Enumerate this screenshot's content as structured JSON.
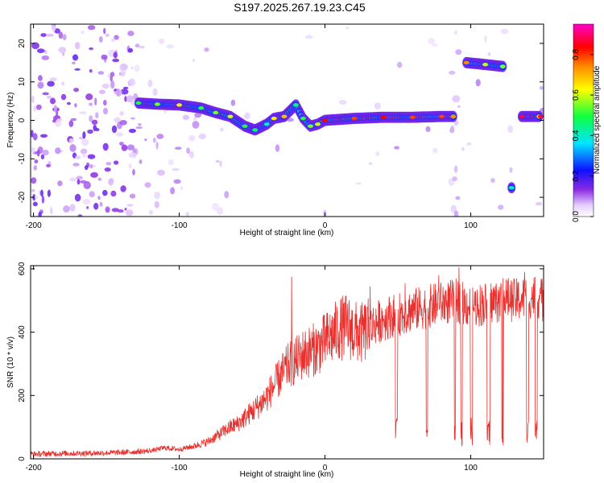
{
  "figure": {
    "title": "S197.2025.267.19.23.C45"
  },
  "chart_data": [
    {
      "type": "heatmap",
      "title": "S197.2025.267.19.23.C45",
      "xlabel": "Height of straight line (km)",
      "ylabel": "Frequency (Hz)",
      "xlim": [
        -202,
        150
      ],
      "ylim": [
        -25,
        25
      ],
      "xticks": [
        -200,
        -100,
        0,
        100
      ],
      "xtick_labels": [
        "-200",
        "-100",
        "0",
        "100"
      ],
      "yticks": [
        -20,
        -10,
        0,
        10,
        20
      ],
      "ytick_labels": [
        "-20",
        "-10",
        "0",
        "10",
        "20"
      ],
      "colorbar": {
        "label": "Normalized spectral amplitude",
        "range": [
          0,
          0.95
        ],
        "ticks": [
          0,
          0.2,
          0.4,
          0.6,
          0.8
        ],
        "tick_labels": [
          "0.0",
          "0.2",
          "0.4",
          "0.6",
          "0.8"
        ],
        "colormap": "rainbow (white → purple → blue → cyan → green → yellow → orange → red → magenta)"
      },
      "ridge": {
        "description": "dominant frequency trace",
        "points": [
          {
            "x": -128,
            "y": 4.5,
            "amp": 0.45
          },
          {
            "x": -115,
            "y": 4.2,
            "amp": 0.5
          },
          {
            "x": -100,
            "y": 4.0,
            "amp": 0.6
          },
          {
            "x": -85,
            "y": 3.2,
            "amp": 0.45
          },
          {
            "x": -75,
            "y": 2.0,
            "amp": 0.5
          },
          {
            "x": -65,
            "y": 1.0,
            "amp": 0.55
          },
          {
            "x": -55,
            "y": -1.5,
            "amp": 0.45
          },
          {
            "x": -48,
            "y": -2.5,
            "amp": 0.4
          },
          {
            "x": -40,
            "y": -1.0,
            "amp": 0.35
          },
          {
            "x": -35,
            "y": 0.5,
            "amp": 0.6
          },
          {
            "x": -28,
            "y": 1.0,
            "amp": 0.65
          },
          {
            "x": -20,
            "y": 4.0,
            "amp": 0.4
          },
          {
            "x": -15,
            "y": 0.5,
            "amp": 0.45
          },
          {
            "x": -10,
            "y": -1.5,
            "amp": 0.5
          },
          {
            "x": -5,
            "y": -1.0,
            "amp": 0.55
          },
          {
            "x": 0,
            "y": 0.0,
            "amp": 0.8
          },
          {
            "x": 20,
            "y": 0.5,
            "amp": 0.75
          },
          {
            "x": 40,
            "y": 0.8,
            "amp": 0.8
          },
          {
            "x": 60,
            "y": 0.8,
            "amp": 0.75
          },
          {
            "x": 80,
            "y": 1.0,
            "amp": 0.75
          },
          {
            "x": 88,
            "y": 1.0,
            "amp": 0.7
          },
          {
            "x": 97,
            "y": 15.0,
            "amp": 0.7
          },
          {
            "x": 110,
            "y": 14.5,
            "amp": 0.55
          },
          {
            "x": 122,
            "y": 14.0,
            "amp": 0.5
          },
          {
            "x": 128,
            "y": -17.5,
            "amp": 0.35
          },
          {
            "x": 135,
            "y": 1.0,
            "amp": 0.85
          },
          {
            "x": 148,
            "y": 1.0,
            "amp": 0.85
          }
        ]
      }
    },
    {
      "type": "line",
      "xlabel": "Height of straight line (km)",
      "ylabel": "SNR (10 * v/v)",
      "xlim": [
        -202,
        150
      ],
      "ylim": [
        0,
        610
      ],
      "xticks": [
        -200,
        -100,
        0,
        100
      ],
      "xtick_labels": [
        "-200",
        "-100",
        "0",
        "100"
      ],
      "yticks": [
        0,
        200,
        400,
        600
      ],
      "ytick_labels": [
        "0",
        "200",
        "400",
        "600"
      ],
      "series": [
        {
          "name": "SNR",
          "color": "#e8312e",
          "x": [
            -202,
            -180,
            -160,
            -140,
            -120,
            -110,
            -100,
            -90,
            -80,
            -75,
            -70,
            -65,
            -60,
            -55,
            -50,
            -45,
            -40,
            -35,
            -30,
            -25,
            -20,
            -15,
            -10,
            -5,
            0,
            5,
            10,
            15,
            20,
            25,
            30,
            35,
            40,
            45,
            50,
            55,
            60,
            65,
            70,
            75,
            80,
            85,
            90,
            95,
            100,
            105,
            110,
            115,
            120,
            125,
            130,
            135,
            140,
            145,
            150
          ],
          "values": [
            15,
            17,
            18,
            20,
            25,
            35,
            30,
            40,
            55,
            70,
            85,
            100,
            110,
            130,
            150,
            170,
            195,
            230,
            265,
            295,
            310,
            330,
            340,
            350,
            370,
            390,
            410,
            420,
            400,
            395,
            410,
            430,
            440,
            450,
            455,
            460,
            470,
            475,
            480,
            485,
            490,
            495,
            500,
            490,
            480,
            485,
            490,
            495,
            500,
            505,
            500,
            505,
            510,
            515,
            500
          ],
          "spikes": [
            {
              "x": -23,
              "y": 575
            },
            {
              "x": 31,
              "y": 545
            },
            {
              "x": 55,
              "y": 555
            },
            {
              "x": 78,
              "y": 580
            },
            {
              "x": 92,
              "y": 605
            },
            {
              "x": 122,
              "y": 570
            },
            {
              "x": 137,
              "y": 590
            }
          ],
          "dropouts_above_x": 30,
          "dropout_floor": 40
        }
      ]
    }
  ]
}
